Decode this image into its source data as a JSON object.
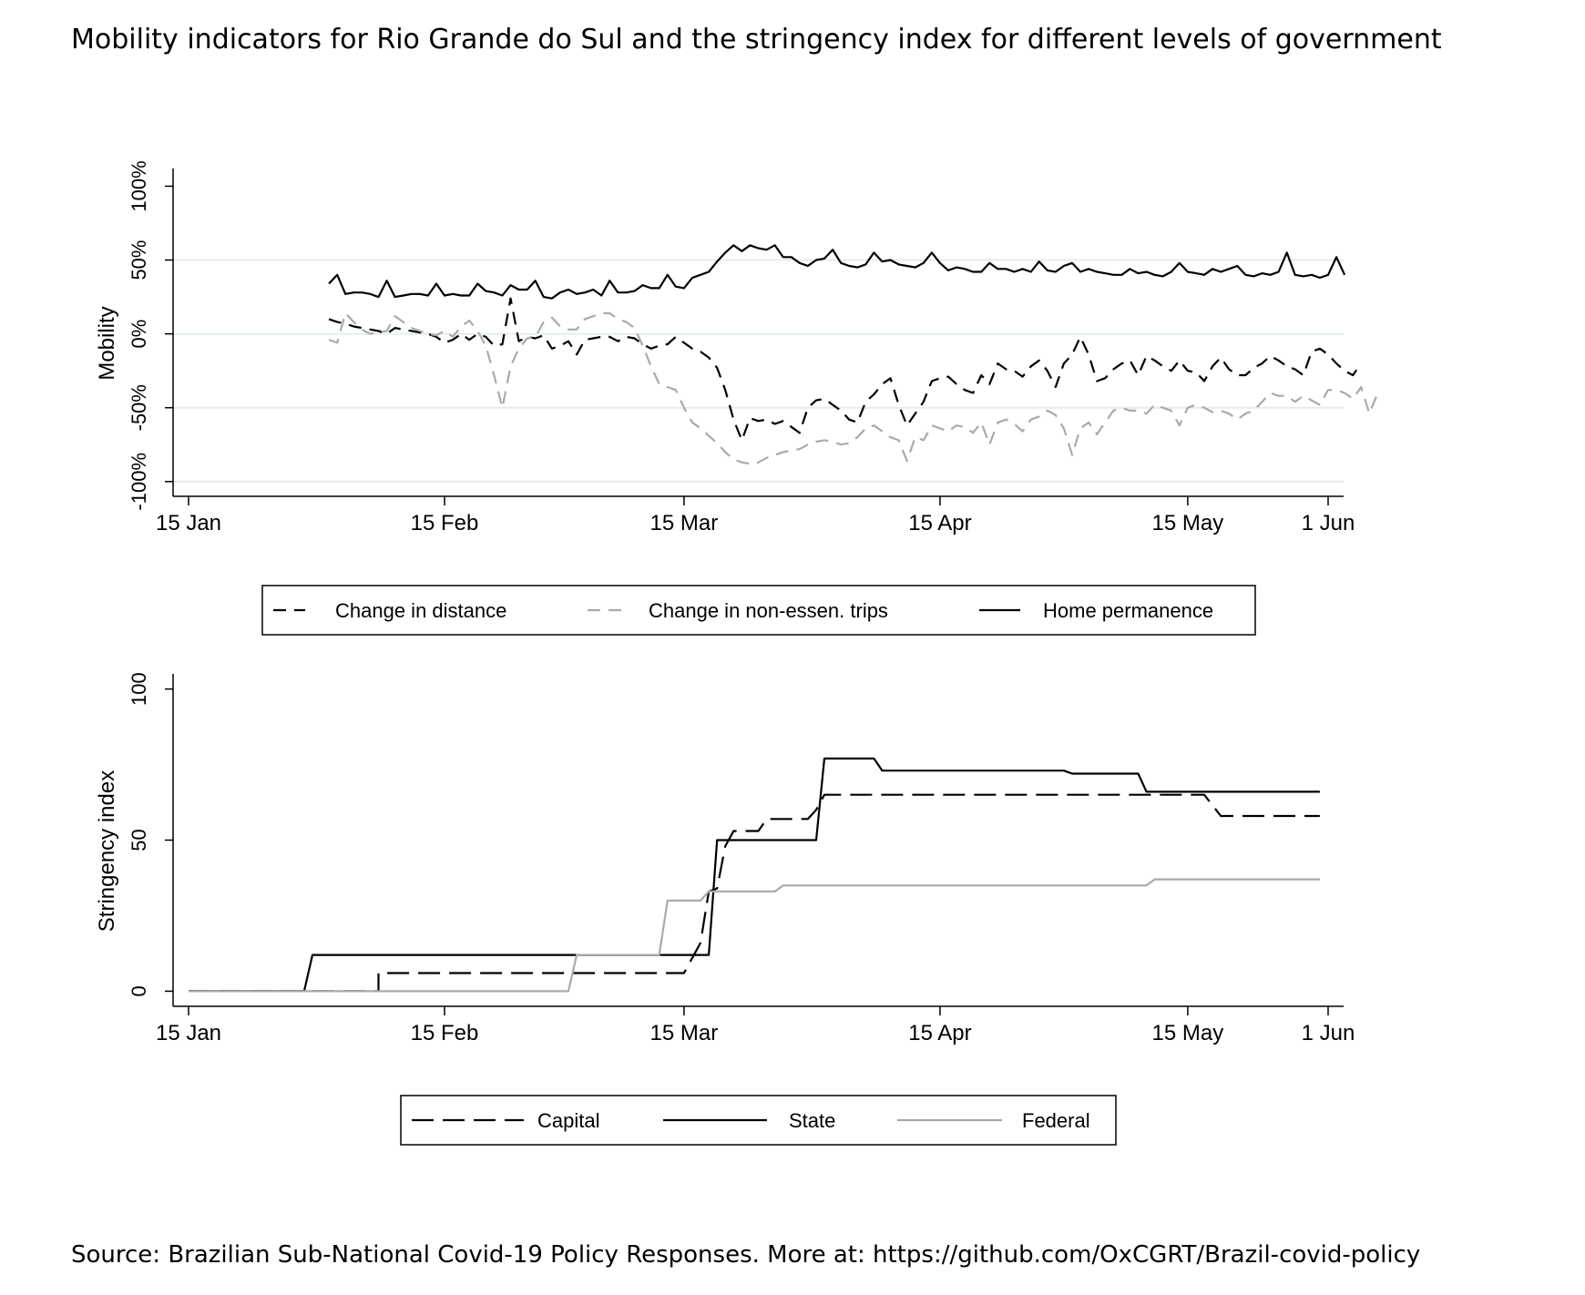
{
  "page": {
    "title": "Mobility indicators for Rio Grande do Sul and the stringency index for different levels of government",
    "source": "Source: Brazilian Sub-National Covid-19 Policy Responses. More at: https://github.com/OxCGRT/Brazil-covid-policy"
  },
  "chart_data": [
    {
      "type": "line",
      "ylabel": "Mobility",
      "xlabel": "",
      "x_ticks": [
        "15 Jan",
        "15 Feb",
        "15 Mar",
        "15 Apr",
        "15 May",
        "1 Jun"
      ],
      "x_tick_days": [
        0,
        31,
        60,
        91,
        121,
        138
      ],
      "y_ticks": [
        "-100%",
        "-50%",
        "0%",
        "50%",
        "100%"
      ],
      "y_tick_values": [
        -100,
        -50,
        0,
        50,
        100
      ],
      "ylim": [
        -110,
        112
      ],
      "xlim": [
        -2,
        140
      ],
      "grid": true,
      "legend_position": "bottom",
      "series": [
        {
          "name": "Change in distance",
          "style": "dash",
          "color": "#000000",
          "x_start": "2020-02-01",
          "values": [
            10,
            8,
            7,
            5,
            4,
            3,
            2,
            0,
            4,
            3,
            2,
            1,
            0,
            -2,
            -6,
            -4,
            0,
            -4,
            0,
            -2,
            -8,
            -7,
            24,
            -5,
            -2,
            -3,
            -1,
            -10,
            -8,
            -5,
            -14,
            -4,
            -3,
            -2,
            -2,
            -5,
            -2,
            -3,
            -7,
            -10,
            -8,
            -7,
            -2,
            -6,
            -10,
            -12,
            -16,
            -23,
            -38,
            -58,
            -72,
            -57,
            -59,
            -58,
            -61,
            -59,
            -63,
            -67,
            -50,
            -45,
            -44,
            -48,
            -52,
            -58,
            -60,
            -46,
            -41,
            -34,
            -30,
            -48,
            -62,
            -54,
            -46,
            -32,
            -30,
            -29,
            -34,
            -38,
            -40,
            -28,
            -34,
            -20,
            -24,
            -25,
            -29,
            -22,
            -18,
            -25,
            -36,
            -20,
            -14,
            -2,
            -14,
            -32,
            -30,
            -24,
            -20,
            -18,
            -28,
            -15,
            -18,
            -22,
            -25,
            -18,
            -25,
            -26,
            -32,
            -22,
            -16,
            -24,
            -28,
            -28,
            -23,
            -20,
            -15,
            -18,
            -22,
            -24,
            -28,
            -12,
            -10,
            -14,
            -20,
            -25,
            -28,
            -20
          ],
          "y_unit": "%"
        },
        {
          "name": "Change in non-essen. trips",
          "style": "dash",
          "color": "#aaaaaa",
          "x_start": "2020-02-01",
          "values": [
            -4,
            -6,
            14,
            8,
            3,
            0,
            1,
            2,
            12,
            8,
            4,
            2,
            0,
            -1,
            2,
            -2,
            5,
            9,
            2,
            -8,
            -28,
            -50,
            -22,
            -10,
            -3,
            -2,
            8,
            11,
            5,
            3,
            3,
            10,
            12,
            14,
            14,
            10,
            8,
            4,
            -8,
            -22,
            -34,
            -36,
            -38,
            -50,
            -60,
            -64,
            -69,
            -74,
            -80,
            -85,
            -87,
            -88,
            -87,
            -84,
            -82,
            -80,
            -79,
            -78,
            -75,
            -73,
            -72,
            -73,
            -75,
            -74,
            -70,
            -64,
            -62,
            -66,
            -70,
            -72,
            -86,
            -70,
            -72,
            -62,
            -64,
            -66,
            -62,
            -63,
            -67,
            -60,
            -75,
            -60,
            -58,
            -61,
            -66,
            -58,
            -56,
            -52,
            -55,
            -64,
            -82,
            -64,
            -60,
            -68,
            -60,
            -52,
            -50,
            -52,
            -52,
            -54,
            -48,
            -50,
            -52,
            -62,
            -50,
            -48,
            -50,
            -53,
            -52,
            -54,
            -58,
            -54,
            -52,
            -46,
            -40,
            -42,
            -42,
            -46,
            -42,
            -45,
            -48,
            -38,
            -38,
            -40,
            -44,
            -36,
            -54,
            -40
          ],
          "y_unit": "%"
        },
        {
          "name": "Home permanence",
          "style": "solid",
          "color": "#000000",
          "x_start": "2020-02-01",
          "values": [
            34,
            40,
            27,
            28,
            28,
            27,
            25,
            36,
            25,
            26,
            27,
            27,
            26,
            34,
            26,
            27,
            26,
            26,
            34,
            29,
            28,
            26,
            33,
            30,
            30,
            36,
            25,
            24,
            28,
            30,
            27,
            28,
            30,
            26,
            36,
            28,
            28,
            29,
            33,
            31,
            31,
            40,
            32,
            31,
            38,
            40,
            42,
            49,
            55,
            60,
            56,
            60,
            58,
            57,
            60,
            52,
            52,
            48,
            46,
            50,
            51,
            57,
            48,
            46,
            45,
            47,
            55,
            49,
            50,
            47,
            46,
            45,
            48,
            55,
            48,
            43,
            45,
            44,
            42,
            42,
            48,
            44,
            44,
            42,
            44,
            42,
            49,
            43,
            42,
            46,
            48,
            42,
            44,
            42,
            41,
            40,
            40,
            44,
            41,
            42,
            40,
            39,
            42,
            48,
            42,
            41,
            40,
            44,
            42,
            44,
            46,
            40,
            39,
            41,
            40,
            42,
            55,
            40,
            39,
            40,
            38,
            40,
            52,
            40
          ],
          "y_unit": "%"
        }
      ]
    },
    {
      "type": "line",
      "ylabel": "Stringency index",
      "xlabel": "",
      "x_ticks": [
        "15 Jan",
        "15 Feb",
        "15 Mar",
        "15 Apr",
        "15 May",
        "1 Jun"
      ],
      "x_tick_days": [
        0,
        31,
        60,
        91,
        121,
        138
      ],
      "y_ticks": [
        "0",
        "50",
        "100"
      ],
      "y_tick_values": [
        0,
        50,
        100
      ],
      "ylim": [
        -5,
        105
      ],
      "xlim": [
        -2,
        140
      ],
      "grid": false,
      "legend_position": "bottom",
      "series": [
        {
          "name": "Capital",
          "style": "dash",
          "color": "#000000",
          "x_start": "2020-01-15",
          "step_points": [
            [
              0,
              0
            ],
            [
              23,
              0
            ],
            [
              23,
              6
            ],
            [
              60,
              6
            ],
            [
              62,
              16
            ],
            [
              63,
              33
            ],
            [
              64,
              34
            ],
            [
              65,
              48
            ],
            [
              66,
              53
            ],
            [
              69,
              53
            ],
            [
              70,
              57
            ],
            [
              75,
              57
            ],
            [
              76,
              60
            ],
            [
              77,
              65
            ],
            [
              123,
              65
            ],
            [
              125,
              58
            ],
            [
              137,
              58
            ]
          ]
        },
        {
          "name": "State",
          "style": "solid",
          "color": "#000000",
          "x_start": "2020-01-15",
          "step_points": [
            [
              0,
              0
            ],
            [
              14,
              0
            ],
            [
              15,
              12
            ],
            [
              63,
              12
            ],
            [
              64,
              50
            ],
            [
              76,
              50
            ],
            [
              77,
              77
            ],
            [
              83,
              77
            ],
            [
              84,
              73
            ],
            [
              106,
              73
            ],
            [
              107,
              72
            ],
            [
              115,
              72
            ],
            [
              116,
              66
            ],
            [
              137,
              66
            ]
          ]
        },
        {
          "name": "Federal",
          "style": "solid",
          "color": "#aaaaaa",
          "x_start": "2020-01-15",
          "step_points": [
            [
              0,
              0
            ],
            [
              46,
              0
            ],
            [
              47,
              12
            ],
            [
              57,
              12
            ],
            [
              58,
              30
            ],
            [
              62,
              30
            ],
            [
              63,
              33
            ],
            [
              71,
              33
            ],
            [
              72,
              35
            ],
            [
              116,
              35
            ],
            [
              117,
              37
            ],
            [
              137,
              37
            ]
          ]
        }
      ]
    }
  ]
}
